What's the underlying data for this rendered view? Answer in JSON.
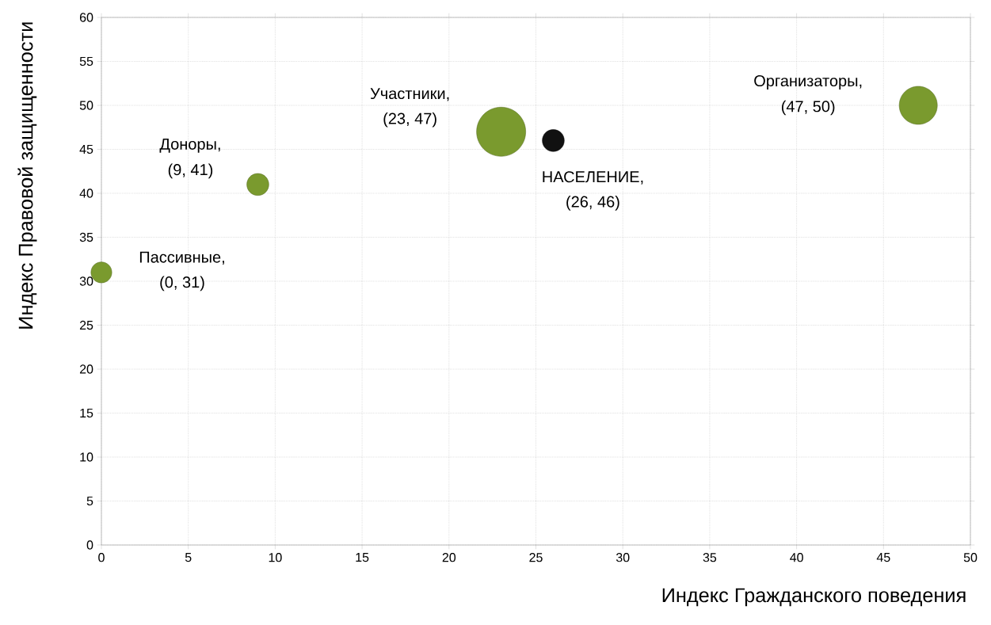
{
  "chart_data": {
    "type": "bubble",
    "xlabel": "Индекс Гражданского поведения",
    "ylabel": "Индекс Правовой защищенности",
    "x": [
      0,
      9,
      23,
      26,
      47
    ],
    "values": [
      31,
      41,
      47,
      46,
      50
    ],
    "sizes": [
      0.18,
      0.2,
      1,
      0.2,
      0.6
    ],
    "colors": [
      "#7a9a2e",
      "#7a9a2e",
      "#7a9a2e",
      "#111111",
      "#7a9a2e"
    ],
    "xlim": [
      0,
      50
    ],
    "ylim": [
      0,
      60
    ],
    "xticks": [
      0,
      5,
      10,
      15,
      20,
      25,
      30,
      35,
      40,
      45,
      50
    ],
    "yticks": [
      0,
      5,
      10,
      15,
      20,
      25,
      30,
      35,
      40,
      45,
      50,
      55,
      60
    ],
    "grid": true,
    "annotations": [
      "Пассивные,",
      "(0, 31)",
      "Доноры,",
      "(9, 41)",
      "Участники,",
      "(23, 47)",
      "НАСЕЛЕНИЕ,",
      "(26, 46)",
      "Организаторы,",
      "(47, 50)"
    ]
  }
}
